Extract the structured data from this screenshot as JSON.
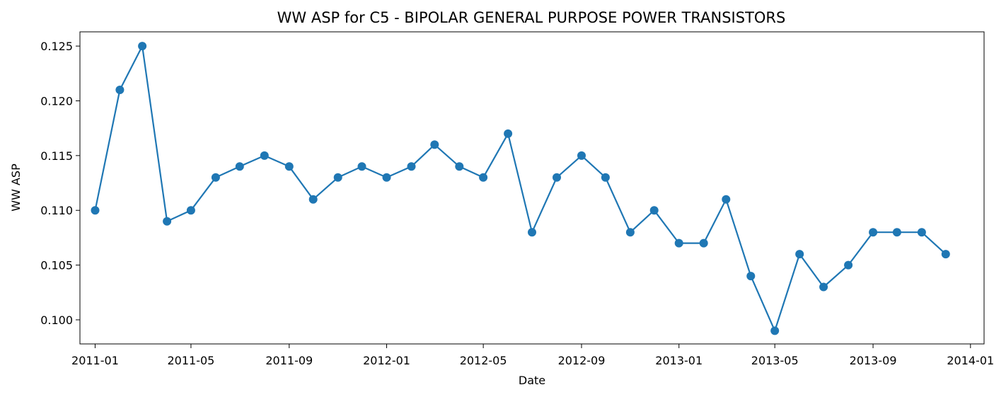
{
  "chart_data": {
    "type": "line",
    "title": "WW ASP for C5 - BIPOLAR GENERAL PURPOSE POWER TRANSISTORS",
    "xlabel": "Date",
    "ylabel": "WW ASP",
    "x_scale": "time",
    "xlim": [
      "2010-12-13",
      "2014-01-18"
    ],
    "ylim": [
      0.0978,
      0.1263
    ],
    "grid": false,
    "color": "#1f77b4",
    "marker": "circle",
    "x_ticks": [
      "2011-01-01",
      "2011-05-01",
      "2011-09-01",
      "2012-01-01",
      "2012-05-01",
      "2012-09-01",
      "2013-01-01",
      "2013-05-01",
      "2013-09-01",
      "2014-01-01"
    ],
    "x_tick_labels": [
      "2011-01",
      "2011-05",
      "2011-09",
      "2012-01",
      "2012-05",
      "2012-09",
      "2013-01",
      "2013-05",
      "2013-09",
      "2014-01"
    ],
    "y_ticks": [
      0.1,
      0.105,
      0.11,
      0.115,
      0.12,
      0.125
    ],
    "y_tick_labels": [
      "0.100",
      "0.105",
      "0.110",
      "0.115",
      "0.120",
      "0.125"
    ],
    "x": [
      "2011-01-01",
      "2011-02-01",
      "2011-03-01",
      "2011-04-01",
      "2011-05-01",
      "2011-06-01",
      "2011-07-01",
      "2011-08-01",
      "2011-09-01",
      "2011-10-01",
      "2011-11-01",
      "2011-12-01",
      "2012-01-01",
      "2012-02-01",
      "2012-03-01",
      "2012-04-01",
      "2012-05-01",
      "2012-06-01",
      "2012-07-01",
      "2012-08-01",
      "2012-09-01",
      "2012-10-01",
      "2012-11-01",
      "2012-12-01",
      "2013-01-01",
      "2013-02-01",
      "2013-03-01",
      "2013-04-01",
      "2013-05-01",
      "2013-06-01",
      "2013-07-01",
      "2013-08-01",
      "2013-09-01",
      "2013-10-01",
      "2013-11-01",
      "2013-12-01"
    ],
    "series": [
      {
        "values": [
          0.11,
          0.121,
          0.125,
          0.109,
          0.11,
          0.113,
          0.114,
          0.115,
          0.114,
          0.111,
          0.113,
          0.114,
          0.113,
          0.114,
          0.116,
          0.114,
          0.113,
          0.117,
          0.108,
          0.113,
          0.115,
          0.113,
          0.108,
          0.11,
          0.107,
          0.107,
          0.111,
          0.104,
          0.099,
          0.106,
          0.103,
          0.105,
          0.108,
          0.108,
          0.108,
          0.106
        ]
      }
    ]
  }
}
